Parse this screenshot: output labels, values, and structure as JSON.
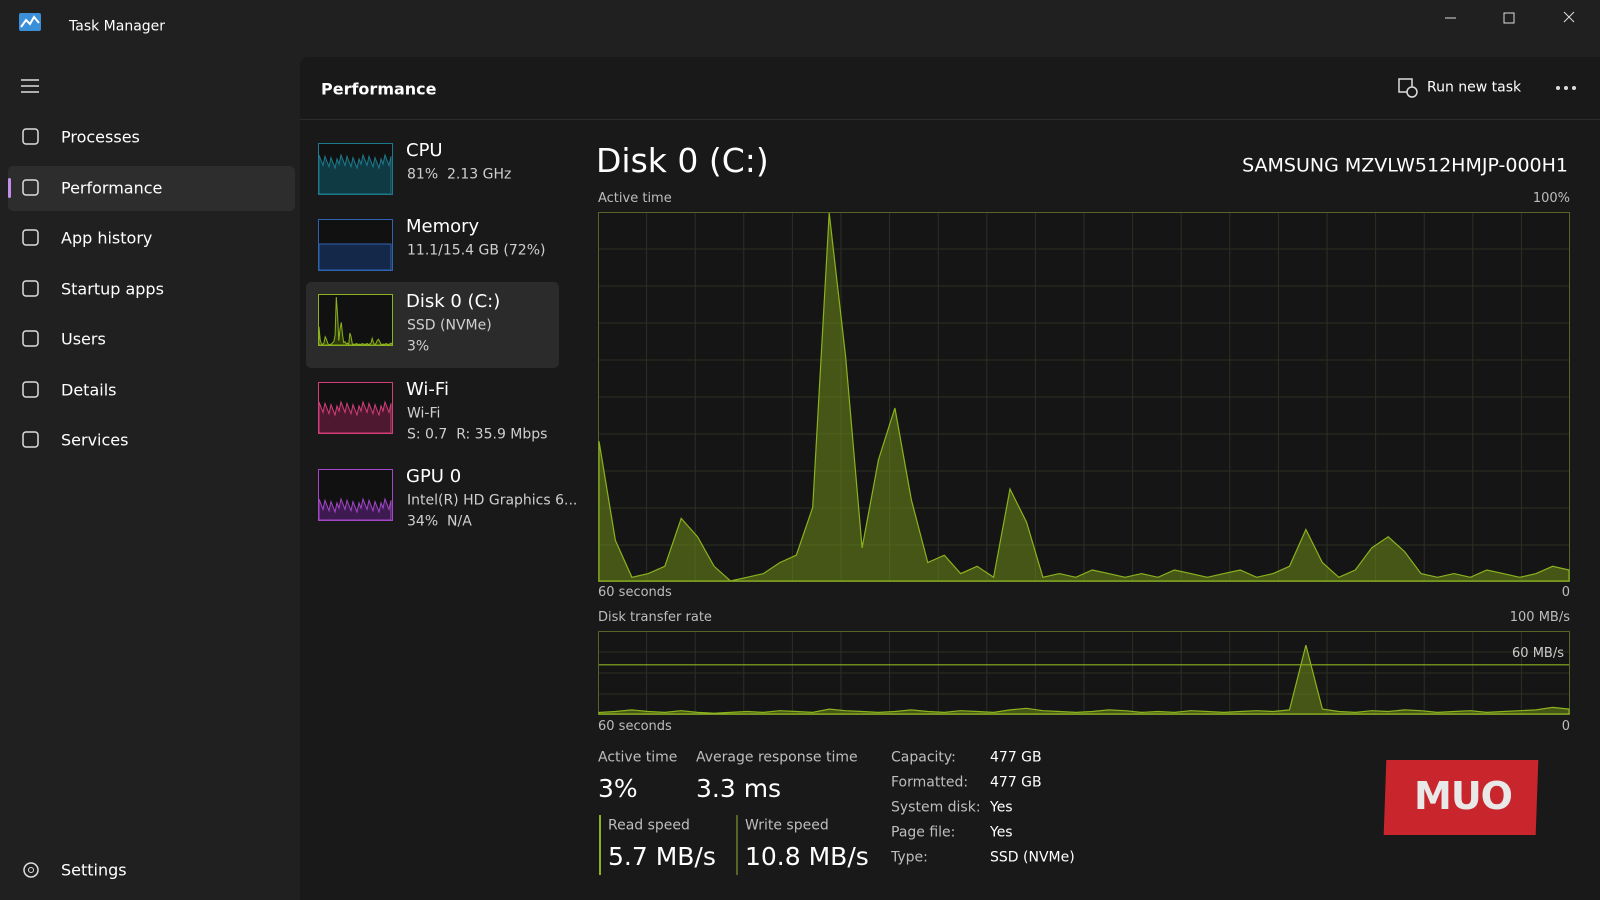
{
  "window": {
    "title": "Task Manager"
  },
  "nav": {
    "items": [
      "Processes",
      "Performance",
      "App history",
      "Startup apps",
      "Users",
      "Details",
      "Services"
    ],
    "selected": 1,
    "settings": "Settings"
  },
  "header": {
    "title": "Performance",
    "run_new_task": "Run new task"
  },
  "devices": [
    {
      "name": "CPU",
      "lines": [
        "81%  2.13 GHz"
      ]
    },
    {
      "name": "Memory",
      "lines": [
        "11.1/15.4 GB (72%)"
      ]
    },
    {
      "name": "Disk 0 (C:)",
      "lines": [
        "SSD (NVMe)",
        "3%"
      ]
    },
    {
      "name": "Wi-Fi",
      "lines": [
        "Wi-Fi",
        "S: 0.7  R: 35.9 Mbps"
      ]
    },
    {
      "name": "GPU 0",
      "lines": [
        "Intel(R) HD Graphics 6...",
        "34%  N/A"
      ]
    }
  ],
  "selected_device": 2,
  "detail": {
    "title": "Disk 0 (C:)",
    "model": "SAMSUNG MZVLW512HMJP-000H1",
    "active_time_chart": {
      "label": "Active time",
      "max_label": "100%",
      "time_label": "60 seconds",
      "min_label": "0",
      "ylim": [
        0,
        100
      ],
      "values": [
        38,
        11,
        1,
        2,
        4,
        17,
        12,
        4,
        0,
        1,
        2,
        5,
        7,
        20,
        100,
        61,
        9,
        33,
        47,
        22,
        5,
        7,
        2,
        4,
        1,
        25,
        16,
        1,
        2,
        1,
        3,
        2,
        1,
        2,
        1,
        3,
        2,
        1,
        2,
        3,
        1,
        2,
        4,
        14,
        5,
        1,
        3,
        9,
        12,
        8,
        2,
        1,
        2,
        1,
        3,
        2,
        1,
        2,
        4,
        3
      ]
    },
    "transfer_chart": {
      "label": "Disk transfer rate",
      "max_label": "100 MB/s",
      "ref_label": "60 MB/s",
      "ref_value": 60,
      "time_label": "60 seconds",
      "min_label": "0",
      "ylim": [
        0,
        100
      ],
      "values": [
        2,
        3,
        5,
        3,
        2,
        4,
        2,
        1,
        2,
        3,
        2,
        4,
        3,
        2,
        6,
        4,
        3,
        2,
        3,
        5,
        3,
        2,
        4,
        3,
        2,
        5,
        7,
        4,
        3,
        2,
        3,
        5,
        4,
        2,
        3,
        2,
        4,
        3,
        2,
        3,
        4,
        3,
        5,
        84,
        6,
        3,
        2,
        4,
        3,
        5,
        4,
        2,
        3,
        4,
        2,
        3,
        4,
        5,
        8,
        6
      ]
    },
    "stats": [
      {
        "label": "Active time",
        "value": "3%"
      },
      {
        "label": "Average response time",
        "value": "3.3 ms"
      }
    ],
    "speeds": [
      {
        "label": "Read speed",
        "value": "5.7 MB/s"
      },
      {
        "label": "Write speed",
        "value": "10.8 MB/s"
      }
    ],
    "properties": [
      {
        "label": "Capacity:",
        "value": "477 GB"
      },
      {
        "label": "Formatted:",
        "value": "477 GB"
      },
      {
        "label": "System disk:",
        "value": "Yes"
      },
      {
        "label": "Page file:",
        "value": "Yes"
      },
      {
        "label": "Type:",
        "value": "SSD (NVMe)"
      }
    ]
  },
  "watermark": "MUO"
}
